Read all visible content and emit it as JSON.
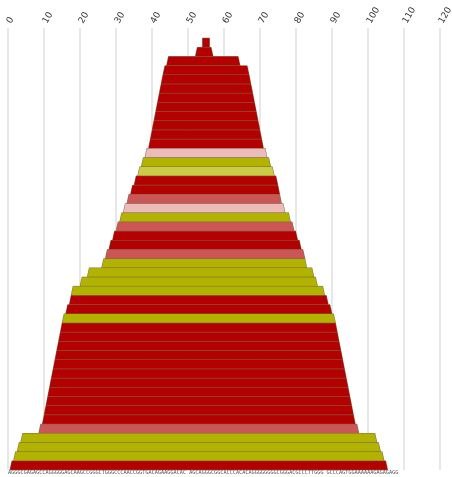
{
  "chart_data": {
    "type": "bar",
    "title": "",
    "xlabel": "",
    "ylabel": "",
    "xlim": [
      0,
      120
    ],
    "x_ticks": [
      0,
      10,
      20,
      30,
      40,
      50,
      60,
      70,
      80,
      90,
      100,
      110,
      120
    ],
    "x_tick_labels": [
      "0",
      "10",
      "20",
      "30",
      "40",
      "50",
      "60",
      "70",
      "80",
      "90",
      "100",
      "110",
      "120"
    ],
    "grid": true,
    "colors": {
      "dark_red": "#b30000",
      "medium_red": "#cc5555",
      "pink": "#eebbbb",
      "olive": "#b2b200",
      "light_olive": "#cccc44",
      "border": "#7a6a4a",
      "grid": "#cfcfcf"
    },
    "layers": [
      {
        "start": 0.5,
        "end": 105.5,
        "color": "dark_red"
      },
      {
        "start": 1.5,
        "end": 104.5,
        "color": "olive"
      },
      {
        "start": 2.5,
        "end": 103.5,
        "color": "olive"
      },
      {
        "start": 3.5,
        "end": 102.5,
        "color": "olive"
      },
      {
        "start": 8.5,
        "end": 97.5,
        "color": "medium_red"
      },
      {
        "start": 9.5,
        "end": 96.5,
        "color": "dark_red"
      },
      {
        "start": 10,
        "end": 96,
        "color": "dark_red"
      },
      {
        "start": 10.5,
        "end": 95.5,
        "color": "dark_red"
      },
      {
        "start": 11,
        "end": 95,
        "color": "dark_red"
      },
      {
        "start": 11.5,
        "end": 94.5,
        "color": "dark_red"
      },
      {
        "start": 12,
        "end": 94,
        "color": "dark_red"
      },
      {
        "start": 12.5,
        "end": 93.5,
        "color": "dark_red"
      },
      {
        "start": 13,
        "end": 93,
        "color": "dark_red"
      },
      {
        "start": 13.5,
        "end": 92.5,
        "color": "dark_red"
      },
      {
        "start": 14,
        "end": 92,
        "color": "dark_red"
      },
      {
        "start": 14.5,
        "end": 91.5,
        "color": "dark_red"
      },
      {
        "start": 15,
        "end": 91,
        "color": "olive"
      },
      {
        "start": 16,
        "end": 90,
        "color": "dark_red"
      },
      {
        "start": 17,
        "end": 89,
        "color": "dark_red"
      },
      {
        "start": 17.5,
        "end": 88,
        "color": "olive"
      },
      {
        "start": 20,
        "end": 86,
        "color": "olive"
      },
      {
        "start": 22,
        "end": 85,
        "color": "olive"
      },
      {
        "start": 26,
        "end": 83,
        "color": "olive"
      },
      {
        "start": 27,
        "end": 82.5,
        "color": "medium_red"
      },
      {
        "start": 28,
        "end": 81.5,
        "color": "dark_red"
      },
      {
        "start": 29,
        "end": 80.5,
        "color": "dark_red"
      },
      {
        "start": 30,
        "end": 79.5,
        "color": "medium_red"
      },
      {
        "start": 31,
        "end": 78.5,
        "color": "olive"
      },
      {
        "start": 32,
        "end": 77,
        "color": "pink"
      },
      {
        "start": 33,
        "end": 76,
        "color": "medium_red"
      },
      {
        "start": 34,
        "end": 75.5,
        "color": "dark_red"
      },
      {
        "start": 35,
        "end": 75,
        "color": "dark_red"
      },
      {
        "start": 36,
        "end": 74,
        "color": "light_olive"
      },
      {
        "start": 37,
        "end": 73,
        "color": "olive"
      },
      {
        "start": 38,
        "end": 72,
        "color": "pink"
      },
      {
        "start": 39,
        "end": 71,
        "color": "dark_red"
      },
      {
        "start": 39.5,
        "end": 70.5,
        "color": "dark_red"
      },
      {
        "start": 40,
        "end": 70,
        "color": "dark_red"
      },
      {
        "start": 40.5,
        "end": 69.5,
        "color": "dark_red"
      },
      {
        "start": 41,
        "end": 69,
        "color": "dark_red"
      },
      {
        "start": 41.5,
        "end": 68.5,
        "color": "dark_red"
      },
      {
        "start": 42,
        "end": 68,
        "color": "dark_red"
      },
      {
        "start": 42.5,
        "end": 67.5,
        "color": "dark_red"
      },
      {
        "start": 43,
        "end": 67,
        "color": "dark_red"
      },
      {
        "start": 44,
        "end": 64.5,
        "color": "dark_red"
      },
      {
        "start": 52,
        "end": 57,
        "color": "dark_red"
      },
      {
        "start": 54,
        "end": 56,
        "color": "dark_red"
      }
    ],
    "sequence_label": "AGGGCGAGAGCCAGGGGGAGCAAGCCGGGCTGGGCCCAACCGGTGACAGAAGGACAC   AGCAGGGCGGCACCCACACAGGGGGGGGCGGGACGCCCTTGGG   GCCCAGTGGAAAAAAGAGAGAGG"
  }
}
